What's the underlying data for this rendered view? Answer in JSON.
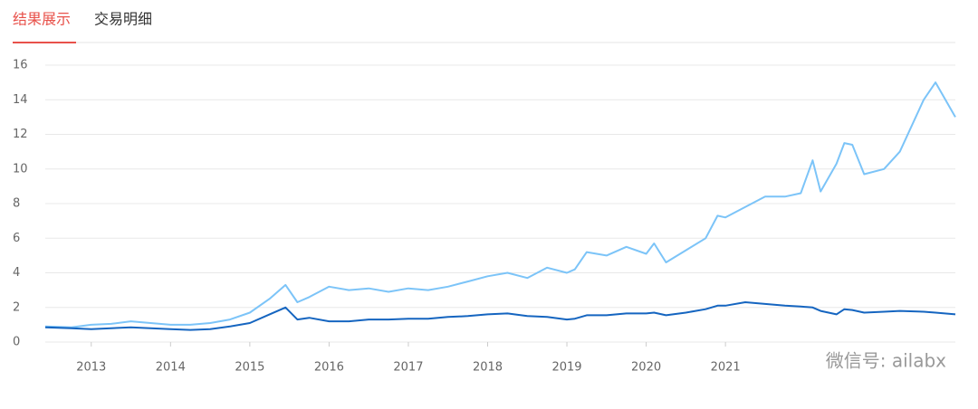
{
  "tabs": [
    "结果展示",
    "交易明细"
  ],
  "watermark": "微信号: ailabx",
  "chart_data": {
    "type": "line",
    "x": [
      2012.42,
      2012.75,
      2013.0,
      2013.25,
      2013.5,
      2013.75,
      2014.0,
      2014.25,
      2014.5,
      2014.75,
      2015.0,
      2015.25,
      2015.45,
      2015.6,
      2015.75,
      2016.0,
      2016.25,
      2016.5,
      2016.75,
      2017.0,
      2017.25,
      2017.5,
      2017.75,
      2018.0,
      2018.25,
      2018.5,
      2018.75,
      2019.0,
      2019.1,
      2019.25,
      2019.5,
      2019.75,
      2020.0,
      2020.1,
      2020.25,
      2020.5,
      2020.75,
      2020.9,
      2021.0,
      2021.25,
      2021.5,
      2021.75,
      2021.95,
      2022.1,
      2022.2,
      2022.4,
      2022.5,
      2022.6,
      2022.75,
      2023.0,
      2023.2,
      2023.5,
      2023.65,
      2023.9
    ],
    "series": [
      {
        "color": "#7cc4f8",
        "values": [
          0.9,
          0.85,
          1.0,
          1.05,
          1.2,
          1.1,
          1.0,
          1.0,
          1.1,
          1.3,
          1.7,
          2.5,
          3.3,
          2.3,
          2.6,
          3.2,
          3.0,
          3.1,
          2.9,
          3.1,
          3.0,
          3.2,
          3.5,
          3.8,
          4.0,
          3.7,
          4.3,
          4.0,
          4.2,
          5.2,
          5.0,
          5.5,
          5.1,
          5.7,
          4.6,
          5.3,
          6.0,
          7.3,
          7.2,
          7.8,
          8.4,
          8.4,
          8.6,
          10.5,
          8.7,
          10.3,
          11.5,
          11.4,
          9.7,
          10.0,
          11.0,
          14.0,
          15.0,
          13.0
        ]
      },
      {
        "color": "#1565c0",
        "values": [
          0.85,
          0.8,
          0.75,
          0.8,
          0.85,
          0.8,
          0.75,
          0.7,
          0.75,
          0.9,
          1.1,
          1.6,
          2.0,
          1.3,
          1.4,
          1.2,
          1.2,
          1.3,
          1.3,
          1.35,
          1.35,
          1.45,
          1.5,
          1.6,
          1.65,
          1.5,
          1.45,
          1.3,
          1.35,
          1.55,
          1.55,
          1.65,
          1.65,
          1.7,
          1.55,
          1.7,
          1.9,
          2.1,
          2.1,
          2.3,
          2.2,
          2.1,
          2.05,
          2.0,
          1.8,
          1.6,
          1.9,
          1.85,
          1.7,
          1.75,
          1.8,
          1.75,
          1.7,
          1.6
        ]
      }
    ],
    "xlim": [
      2012.42,
      2023.9
    ],
    "xticks": [
      2013,
      2014,
      2015,
      2016,
      2017,
      2018,
      2019,
      2020,
      2021
    ],
    "ylim": [
      0,
      16
    ],
    "yticks": [
      0,
      2,
      4,
      6,
      8,
      10,
      12,
      14,
      16
    ],
    "grid": true
  }
}
